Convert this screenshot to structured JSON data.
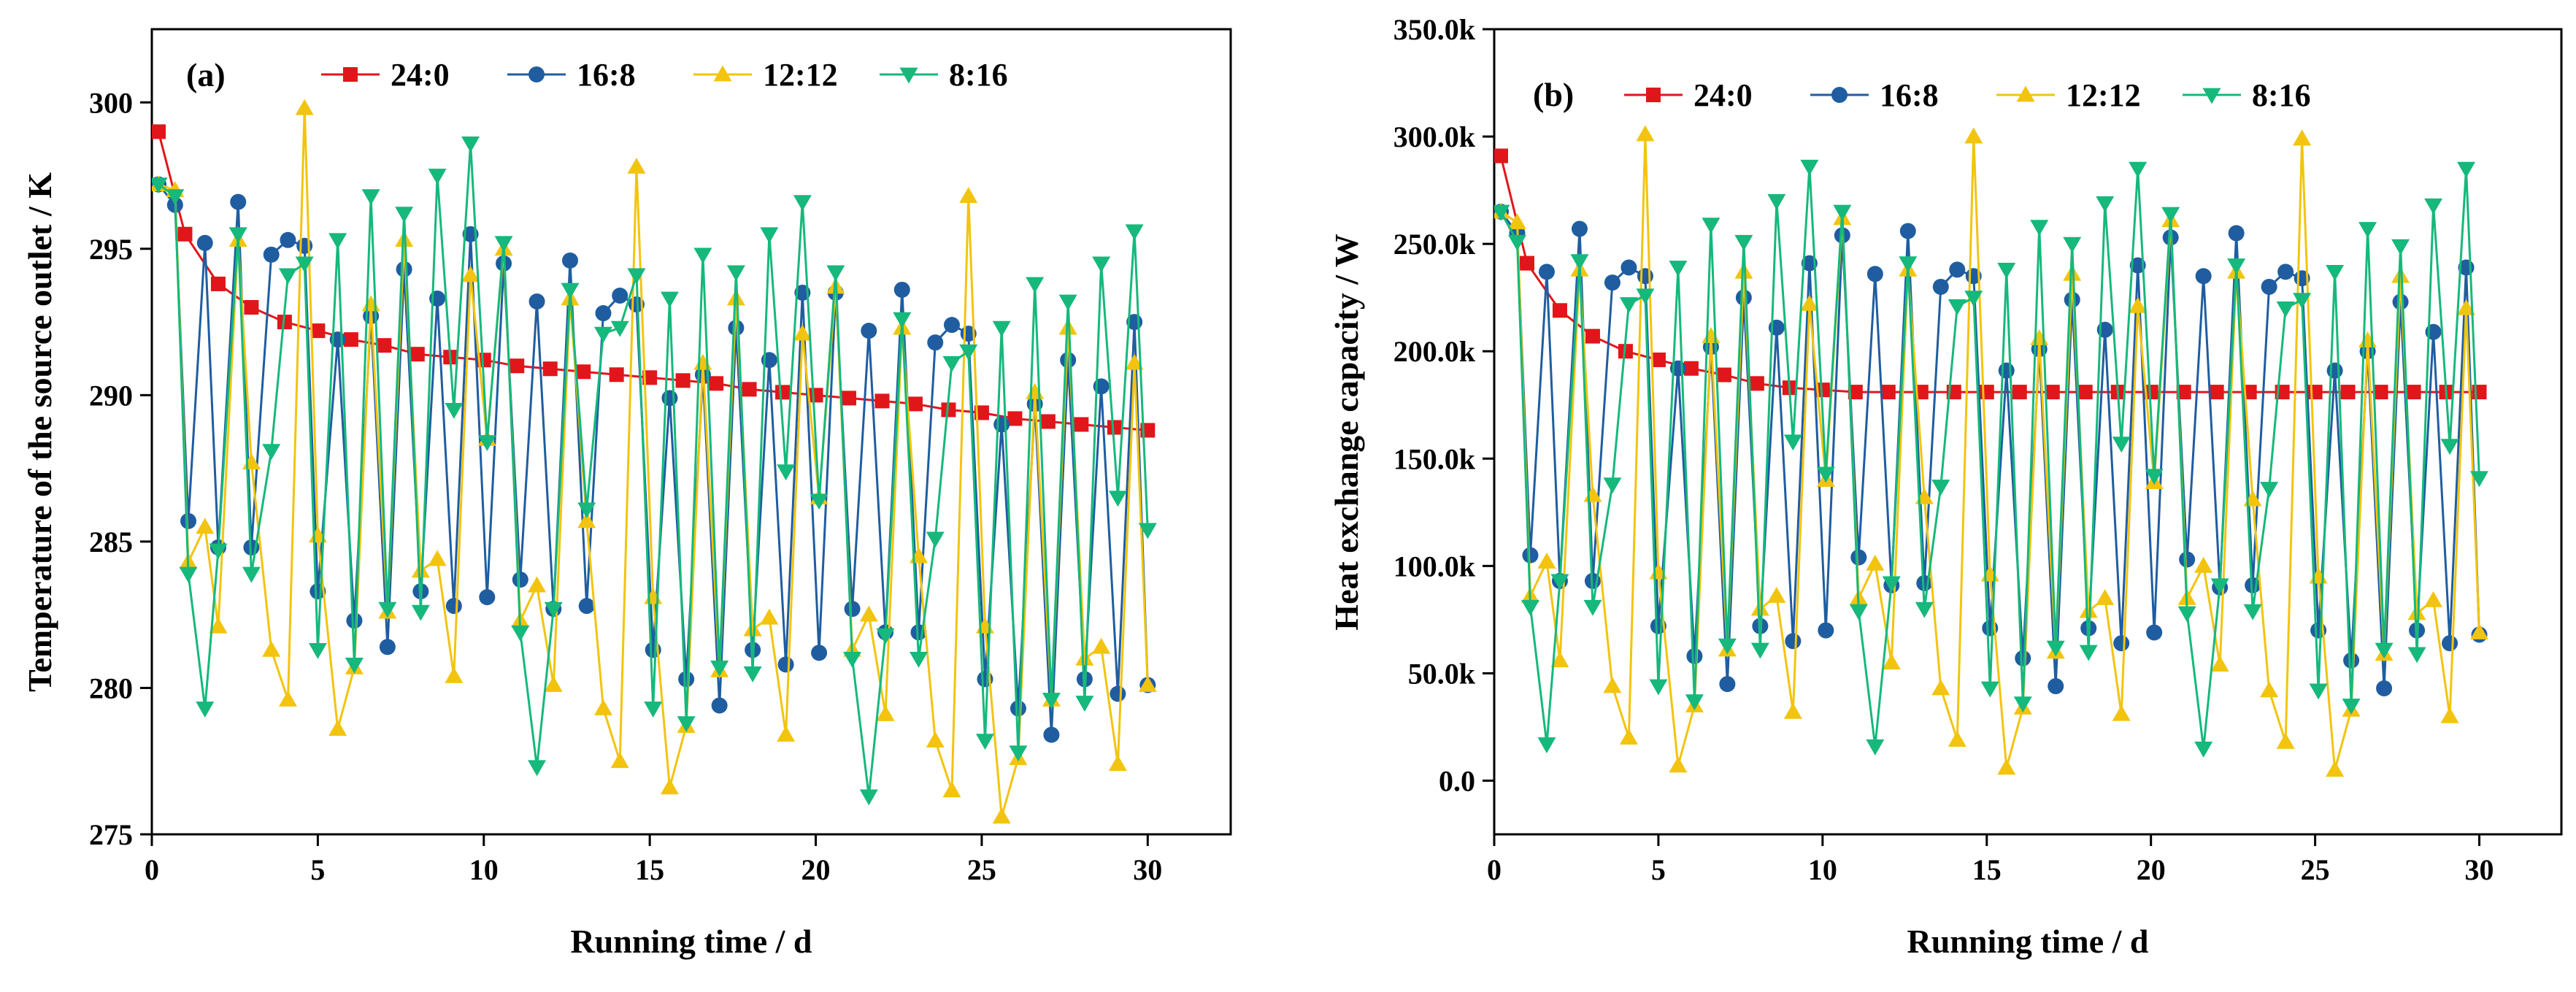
{
  "colors": {
    "24:0": "#e0161b",
    "16:8": "#1f5da0",
    "12:12": "#f2c40f",
    "8:16": "#16b87c"
  },
  "chart_data": [
    {
      "type": "line",
      "panel_label": "(a)",
      "title": "",
      "xlabel": "Running time / d",
      "ylabel": "Temperature of the source outlet / K",
      "xlim": [
        0,
        32.5
      ],
      "ylim": [
        275,
        302.5
      ],
      "xticks": [
        0,
        5,
        10,
        15,
        20,
        25,
        30
      ],
      "yticks": [
        275,
        280,
        285,
        290,
        295,
        300
      ],
      "ytick_labels": [
        "275",
        "280",
        "285",
        "290",
        "295",
        "300"
      ],
      "legend_position": "top",
      "series": [
        {
          "name": "24:0",
          "marker": "square",
          "x": [
            0.2,
            1,
            2,
            3,
            4,
            5,
            6,
            7,
            8,
            9,
            10,
            11,
            12,
            13,
            14,
            15,
            16,
            17,
            18,
            19,
            20,
            21,
            22,
            23,
            24,
            25,
            26,
            27,
            28,
            29,
            30
          ],
          "y": [
            299.0,
            295.5,
            293.8,
            293.0,
            292.5,
            292.2,
            291.9,
            291.7,
            291.4,
            291.3,
            291.2,
            291.0,
            290.9,
            290.8,
            290.7,
            290.6,
            290.5,
            290.4,
            290.2,
            290.1,
            290.0,
            289.9,
            289.8,
            289.7,
            289.5,
            289.4,
            289.2,
            289.1,
            289.0,
            288.9,
            288.8
          ]
        },
        {
          "name": "16:8",
          "marker": "circle",
          "x": [
            0.2,
            0.7,
            1.1,
            1.6,
            2.0,
            2.6,
            3.0,
            3.6,
            4.1,
            4.6,
            5.0,
            5.6,
            6.1,
            6.6,
            7.1,
            7.6,
            8.1,
            8.6,
            9.1,
            9.6,
            10.1,
            10.6,
            11.1,
            11.6,
            12.1,
            12.6,
            13.1,
            13.6,
            14.1,
            14.6,
            15.1,
            15.6,
            16.1,
            16.6,
            17.1,
            17.6,
            18.1,
            18.6,
            19.1,
            19.6,
            20.1,
            20.6,
            21.1,
            21.6,
            22.1,
            22.6,
            23.1,
            23.6,
            24.1,
            24.6,
            25.1,
            25.6,
            26.1,
            26.6,
            27.1,
            27.6,
            28.1,
            28.6,
            29.1,
            29.6,
            30.0
          ],
          "y": [
            297.2,
            296.5,
            285.7,
            295.2,
            284.8,
            296.6,
            284.8,
            294.8,
            295.3,
            295.1,
            283.3,
            291.9,
            282.3,
            292.7,
            281.4,
            294.3,
            283.3,
            293.3,
            282.8,
            295.5,
            283.1,
            294.5,
            283.7,
            293.2,
            282.7,
            294.6,
            282.8,
            292.8,
            293.4,
            293.1,
            281.3,
            289.9,
            280.3,
            290.7,
            279.4,
            292.3,
            281.3,
            291.2,
            280.8,
            293.5,
            281.2,
            293.5,
            282.7,
            292.2,
            281.9,
            293.6,
            281.9,
            291.8,
            292.4,
            292.1,
            280.3,
            289.0,
            279.3,
            289.7,
            278.4,
            291.2,
            280.3,
            290.3,
            279.8,
            292.5,
            280.1
          ]
        },
        {
          "name": "12:12",
          "marker": "triangle-up",
          "x": [
            0.2,
            0.7,
            1.1,
            1.6,
            2.0,
            2.6,
            3.0,
            3.6,
            4.1,
            4.6,
            5.0,
            5.6,
            6.1,
            6.6,
            7.1,
            7.6,
            8.1,
            8.6,
            9.1,
            9.6,
            10.1,
            10.6,
            11.1,
            11.6,
            12.1,
            12.6,
            13.1,
            13.6,
            14.1,
            14.6,
            15.1,
            15.6,
            16.1,
            16.6,
            17.1,
            17.6,
            18.1,
            18.6,
            19.1,
            19.6,
            20.1,
            20.6,
            21.1,
            21.6,
            22.1,
            22.6,
            23.1,
            23.6,
            24.1,
            24.6,
            25.1,
            25.6,
            26.1,
            26.6,
            27.1,
            27.6,
            28.1,
            28.6,
            29.1,
            29.6,
            30.0
          ],
          "y": [
            297.2,
            297.0,
            284.3,
            285.5,
            282.1,
            295.3,
            287.7,
            281.3,
            279.6,
            299.8,
            285.2,
            278.6,
            280.7,
            293.1,
            282.6,
            295.3,
            284.0,
            284.4,
            280.4,
            294.1,
            288.5,
            295.0,
            282.3,
            283.5,
            280.1,
            293.3,
            285.7,
            279.3,
            277.5,
            297.8,
            283.1,
            276.6,
            278.7,
            291.1,
            280.6,
            293.3,
            282.0,
            282.4,
            278.4,
            292.1,
            286.5,
            293.7,
            281.3,
            282.5,
            279.1,
            292.3,
            284.5,
            278.2,
            276.5,
            296.8,
            282.1,
            275.6,
            277.6,
            290.1,
            279.6,
            292.3,
            281.0,
            281.4,
            277.4,
            291.1,
            280.1
          ]
        },
        {
          "name": "8:16",
          "marker": "triangle-down",
          "x": [
            0.2,
            0.7,
            1.1,
            1.6,
            2.0,
            2.6,
            3.0,
            3.6,
            4.1,
            4.6,
            5.0,
            5.6,
            6.1,
            6.6,
            7.1,
            7.6,
            8.1,
            8.6,
            9.1,
            9.6,
            10.1,
            10.6,
            11.1,
            11.6,
            12.1,
            12.6,
            13.1,
            13.6,
            14.1,
            14.6,
            15.1,
            15.6,
            16.1,
            16.6,
            17.1,
            17.6,
            18.1,
            18.6,
            19.1,
            19.6,
            20.1,
            20.6,
            21.1,
            21.6,
            22.1,
            22.6,
            23.1,
            23.6,
            24.1,
            24.6,
            25.1,
            25.6,
            26.1,
            26.6,
            27.1,
            27.6,
            28.1,
            28.6,
            29.1,
            29.6,
            30.0
          ],
          "y": [
            297.2,
            296.8,
            283.9,
            279.3,
            284.7,
            295.5,
            283.9,
            288.1,
            294.1,
            294.5,
            281.3,
            295.3,
            280.8,
            296.8,
            282.7,
            296.2,
            282.6,
            297.5,
            289.5,
            298.6,
            288.4,
            295.2,
            281.9,
            277.3,
            282.7,
            293.6,
            286.1,
            292.1,
            292.3,
            294.1,
            279.3,
            293.3,
            278.8,
            294.8,
            280.7,
            294.2,
            280.5,
            295.5,
            287.4,
            296.6,
            286.4,
            294.2,
            281.0,
            276.3,
            281.8,
            292.6,
            281.0,
            285.1,
            291.1,
            291.5,
            278.2,
            292.3,
            277.8,
            293.8,
            279.6,
            293.2,
            279.5,
            294.5,
            286.5,
            295.6,
            285.4
          ]
        }
      ]
    },
    {
      "type": "line",
      "panel_label": "(b)",
      "title": "",
      "xlabel": "Running time / d",
      "ylabel": "Heat exchange capacity / W",
      "xlim": [
        0,
        32.5
      ],
      "ylim": [
        -25000,
        350000
      ],
      "xticks": [
        0,
        5,
        10,
        15,
        20,
        25,
        30
      ],
      "yticks": [
        0,
        50000,
        100000,
        150000,
        200000,
        250000,
        300000,
        350000
      ],
      "ytick_labels": [
        "0.0",
        "50.0k",
        "100.0k",
        "150.0k",
        "200.0k",
        "250.0k",
        "300.0k",
        "350.0k"
      ],
      "legend_position": "top",
      "series": [
        {
          "name": "24:0",
          "marker": "square",
          "x": [
            0.2,
            1,
            2,
            3,
            4,
            5,
            6,
            7,
            8,
            9,
            10,
            11,
            12,
            13,
            14,
            15,
            16,
            17,
            18,
            19,
            20,
            21,
            22,
            23,
            24,
            25,
            26,
            27,
            28,
            29,
            30
          ],
          "y": [
            291000,
            241000,
            219000,
            207000,
            200000,
            196000,
            192000,
            189000,
            185000,
            183000,
            182000,
            181000,
            181000,
            181000,
            181000,
            181000,
            181000,
            181000,
            181000,
            181000,
            181000,
            181000,
            181000,
            181000,
            181000,
            181000,
            181000,
            181000,
            181000,
            181000,
            181000
          ]
        },
        {
          "name": "16:8",
          "marker": "circle",
          "x": [
            0.2,
            0.7,
            1.1,
            1.6,
            2.0,
            2.6,
            3.0,
            3.6,
            4.1,
            4.6,
            5.0,
            5.6,
            6.1,
            6.6,
            7.1,
            7.6,
            8.1,
            8.6,
            9.1,
            9.6,
            10.1,
            10.6,
            11.1,
            11.6,
            12.1,
            12.6,
            13.1,
            13.6,
            14.1,
            14.6,
            15.1,
            15.6,
            16.1,
            16.6,
            17.1,
            17.6,
            18.1,
            18.6,
            19.1,
            19.6,
            20.1,
            20.6,
            21.1,
            21.6,
            22.1,
            22.6,
            23.1,
            23.6,
            24.1,
            24.6,
            25.1,
            25.6,
            26.1,
            26.6,
            27.1,
            27.6,
            28.1,
            28.6,
            29.1,
            29.6,
            30.0
          ],
          "y": [
            265000,
            255000,
            105000,
            237000,
            93000,
            257000,
            93000,
            232000,
            239000,
            235000,
            72000,
            192000,
            58000,
            202000,
            45000,
            225000,
            72000,
            211000,
            65000,
            241000,
            70000,
            254000,
            104000,
            236000,
            91000,
            256000,
            92000,
            230000,
            238000,
            235000,
            71000,
            191000,
            57000,
            201000,
            44000,
            224000,
            71000,
            210000,
            64000,
            240000,
            69000,
            253000,
            103000,
            235000,
            90000,
            255000,
            91000,
            230000,
            237000,
            234000,
            70000,
            191000,
            56000,
            200000,
            43000,
            223000,
            70000,
            209000,
            64000,
            239000,
            68000
          ]
        },
        {
          "name": "12:12",
          "marker": "triangle-up",
          "x": [
            0.2,
            0.7,
            1.1,
            1.6,
            2.0,
            2.6,
            3.0,
            3.6,
            4.1,
            4.6,
            5.0,
            5.6,
            6.1,
            6.6,
            7.1,
            7.6,
            8.1,
            8.6,
            9.1,
            9.6,
            10.1,
            10.6,
            11.1,
            11.6,
            12.1,
            12.6,
            13.1,
            13.6,
            14.1,
            14.6,
            15.1,
            15.6,
            16.1,
            16.6,
            17.1,
            17.6,
            18.1,
            18.6,
            19.1,
            19.6,
            20.1,
            20.6,
            21.1,
            21.6,
            22.1,
            22.6,
            23.1,
            23.6,
            24.1,
            24.6,
            25.1,
            25.6,
            26.1,
            26.6,
            27.1,
            27.6,
            28.1,
            28.6,
            29.1,
            29.6,
            30.0
          ],
          "y": [
            265000,
            260000,
            86000,
            102000,
            56000,
            238000,
            133000,
            44000,
            20000,
            301000,
            97000,
            7000,
            35000,
            207000,
            61000,
            237000,
            80000,
            86000,
            32000,
            222000,
            140000,
            262000,
            85000,
            101000,
            55000,
            238000,
            132000,
            43000,
            19000,
            300000,
            96000,
            6000,
            34000,
            206000,
            60000,
            236000,
            79000,
            85000,
            31000,
            221000,
            139000,
            261000,
            85000,
            100000,
            54000,
            237000,
            131000,
            42000,
            18000,
            299000,
            95000,
            5000,
            33000,
            205000,
            59000,
            235000,
            78000,
            84000,
            30000,
            220000,
            69000
          ]
        },
        {
          "name": "8:16",
          "marker": "triangle-down",
          "x": [
            0.2,
            0.7,
            1.1,
            1.6,
            2.0,
            2.6,
            3.0,
            3.6,
            4.1,
            4.6,
            5.0,
            5.6,
            6.1,
            6.6,
            7.1,
            7.6,
            8.1,
            8.6,
            9.1,
            9.6,
            10.1,
            10.6,
            11.1,
            11.6,
            12.1,
            12.6,
            13.1,
            13.6,
            14.1,
            14.6,
            15.1,
            15.6,
            16.1,
            16.6,
            17.1,
            17.6,
            18.1,
            18.6,
            19.1,
            19.6,
            20.1,
            20.6,
            21.1,
            21.6,
            22.1,
            22.6,
            23.1,
            23.6,
            24.1,
            24.6,
            25.1,
            25.6,
            26.1,
            26.6,
            27.1,
            27.6,
            28.1,
            28.6,
            29.1,
            29.6,
            30.0
          ],
          "y": [
            265000,
            251000,
            81000,
            17000,
            93000,
            242000,
            81000,
            138000,
            222000,
            226000,
            44000,
            239000,
            37000,
            259000,
            63000,
            251000,
            61000,
            270000,
            158000,
            286000,
            143000,
            265000,
            79000,
            16000,
            92000,
            241000,
            80000,
            137000,
            221000,
            225000,
            43000,
            238000,
            36000,
            258000,
            62000,
            250000,
            60000,
            269000,
            157000,
            285000,
            142000,
            264000,
            78000,
            15000,
            91000,
            240000,
            79000,
            136000,
            220000,
            224000,
            42000,
            237000,
            35000,
            257000,
            61000,
            249000,
            59000,
            268000,
            156000,
            285000,
            141000
          ]
        }
      ]
    }
  ]
}
